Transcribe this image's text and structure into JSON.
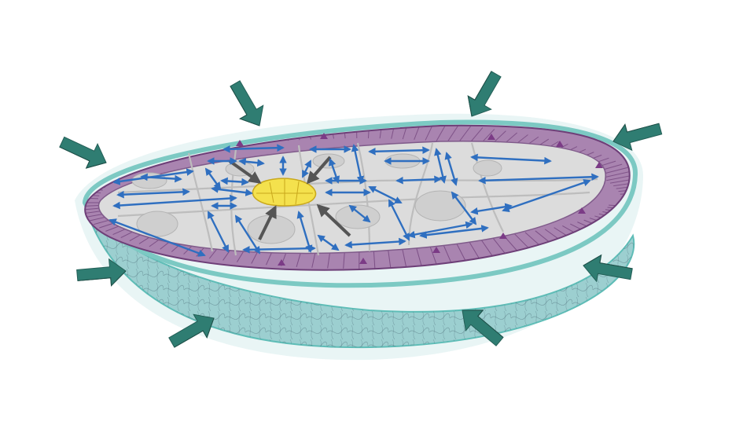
{
  "figure": {
    "labels": [],
    "colors": {
      "background": "#ffffff",
      "shell_outer": "#8fd3cf",
      "shell_rim": "#5fbdb7",
      "shell_body": "#9ccfd0",
      "shell_texture": "#4e6f7a",
      "cell_layer": "#a984b0",
      "cell_layer_dark": "#6e3f78",
      "cell_layer_light": "#d2b7d6",
      "interior": "#dcdcdc",
      "interior_walls": "#bdbdbd",
      "cavity": "#cfcfcf",
      "center": "#f4e14d",
      "center_outline": "#c9a81c",
      "blue_arrow": "#2f6fc0",
      "gray_arrow": "#555555",
      "external_arrow": "#2f7d72",
      "small_arrow": "#7b3b86"
    },
    "external_arrow_count": 10,
    "internal_arrow_style": "double-headed",
    "center_arrow_count": 4
  }
}
